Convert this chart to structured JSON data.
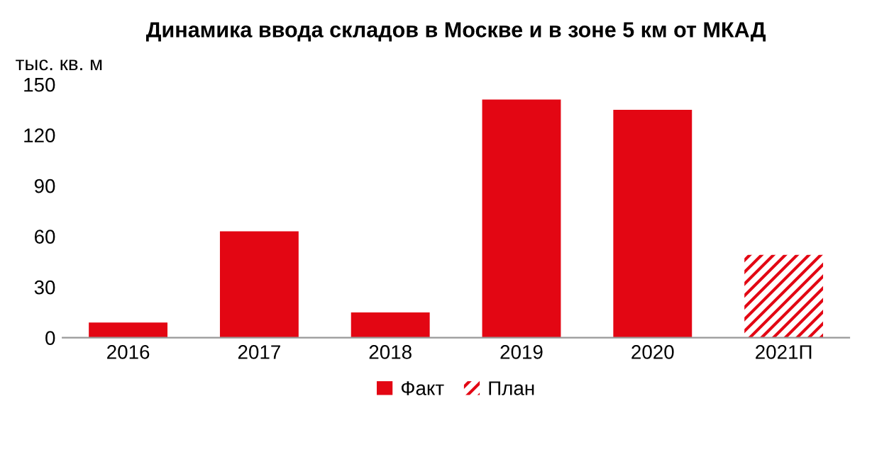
{
  "chart_data": {
    "type": "bar",
    "title": "Динамика ввода складов в Москве и в зоне 5 км от МКАД",
    "ylabel": "тыс. кв. м",
    "categories": [
      "2016",
      "2017",
      "2018",
      "2019",
      "2020",
      "2021П"
    ],
    "series": [
      {
        "name": "Факт",
        "color": "#e30613",
        "values": [
          9,
          63,
          15,
          141,
          135,
          null
        ]
      },
      {
        "name": "План",
        "color": "#e30613",
        "values": [
          null,
          null,
          null,
          null,
          null,
          49
        ]
      }
    ],
    "ylim": [
      0,
      150
    ],
    "yticks": [
      0,
      30,
      60,
      90,
      120,
      150
    ],
    "grid": false,
    "legend": "bottom"
  }
}
